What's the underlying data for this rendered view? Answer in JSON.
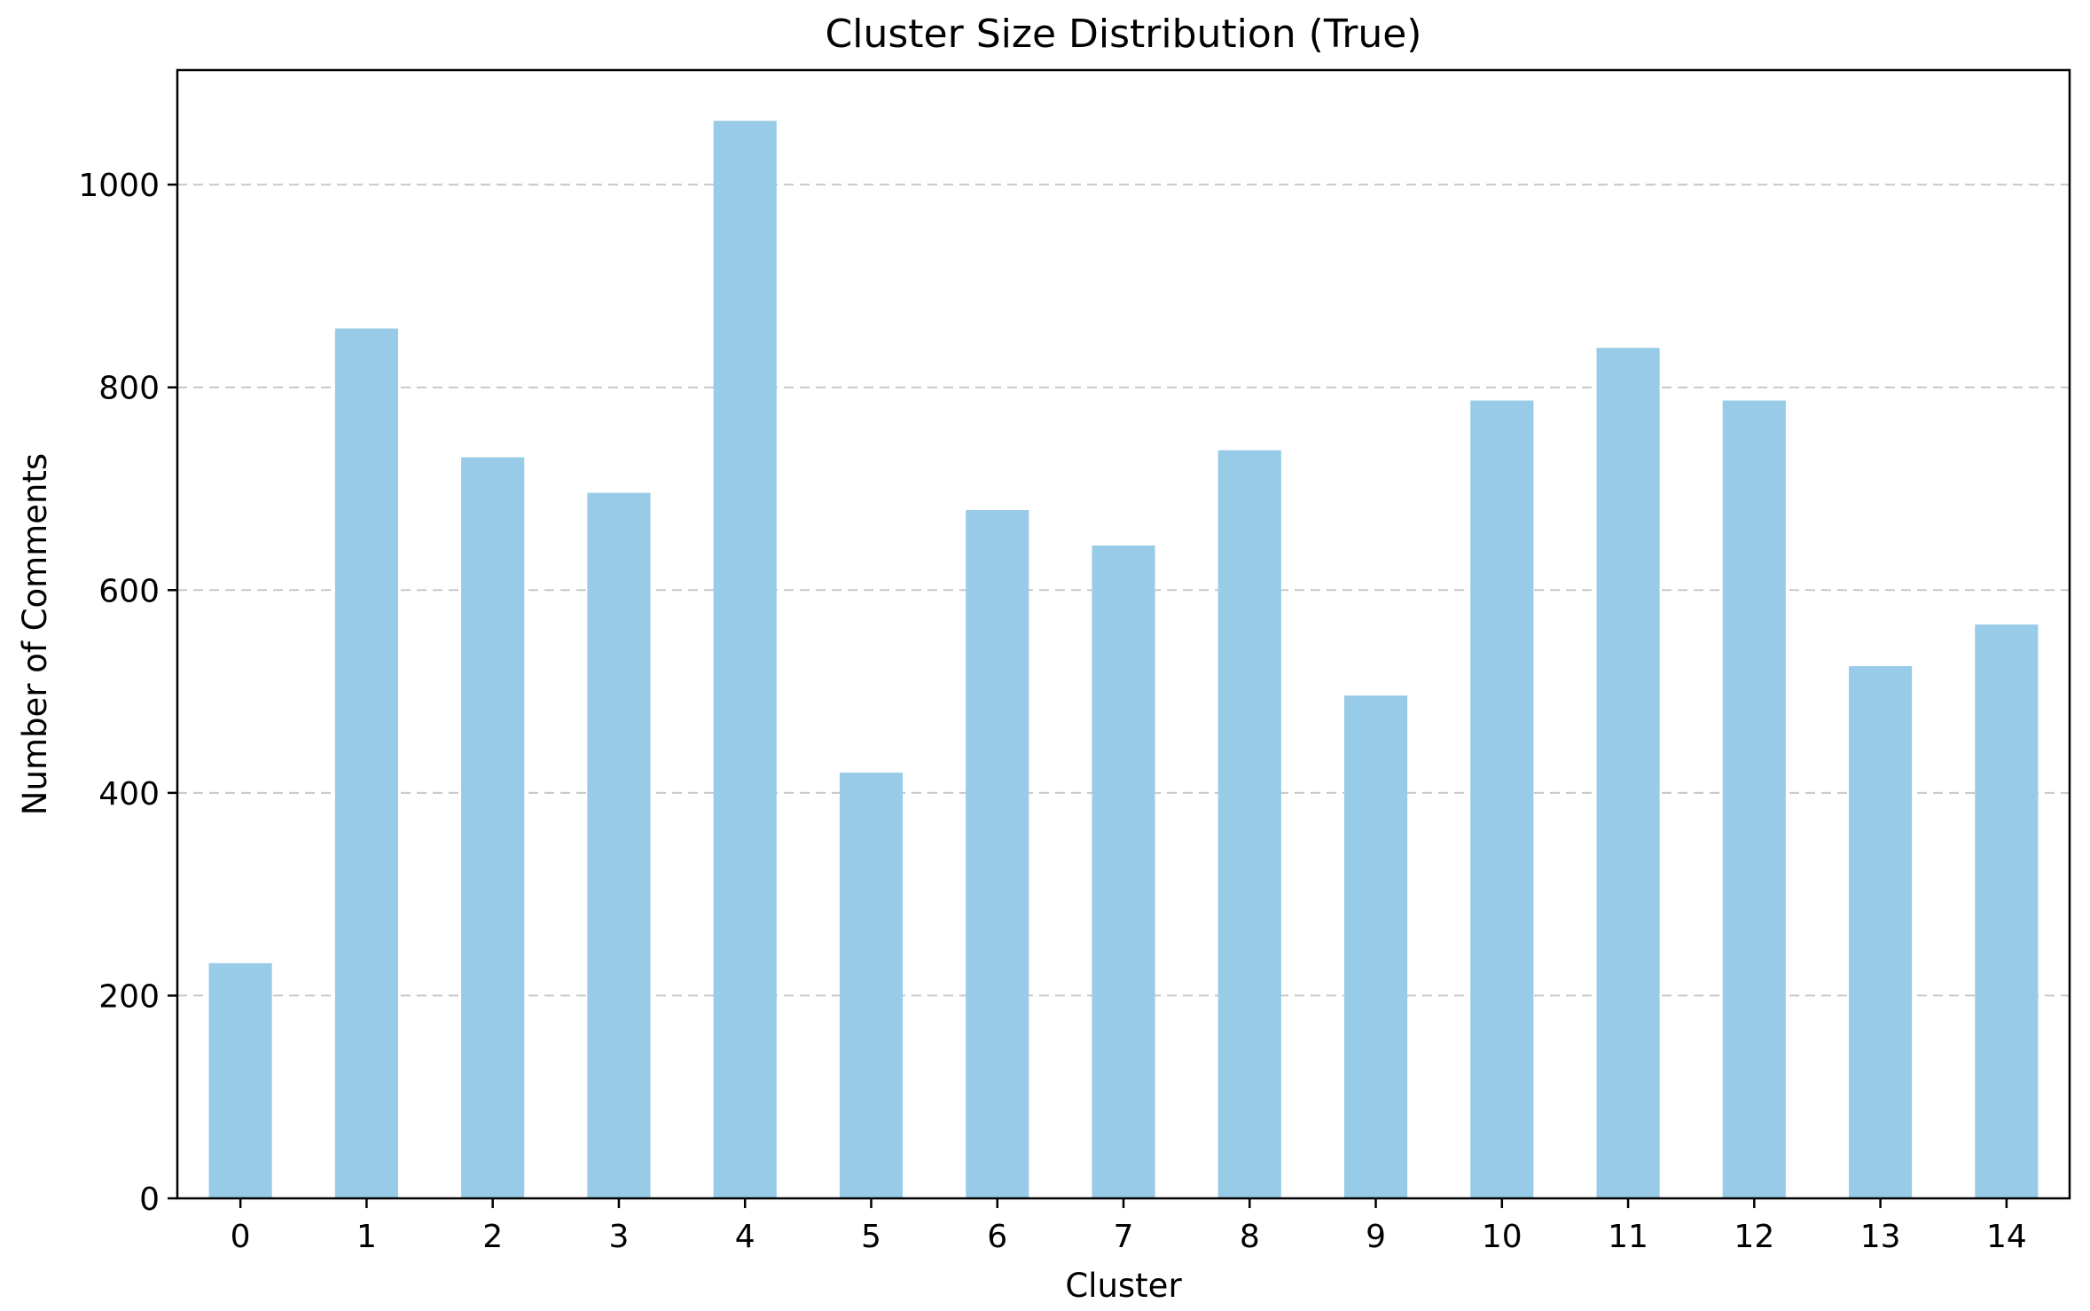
{
  "chart_data": {
    "type": "bar",
    "title": "Cluster Size Distribution (True)",
    "xlabel": "Cluster",
    "ylabel": "Number of Comments",
    "categories": [
      "0",
      "1",
      "2",
      "3",
      "4",
      "5",
      "6",
      "7",
      "8",
      "9",
      "10",
      "11",
      "12",
      "13",
      "14"
    ],
    "values": [
      232,
      858,
      731,
      696,
      1063,
      420,
      679,
      644,
      738,
      496,
      787,
      839,
      787,
      525,
      566
    ],
    "ylim": [
      0,
      1113
    ],
    "yticks": [
      0,
      200,
      400,
      600,
      800,
      1000
    ],
    "grid": {
      "axis": "y",
      "style": "dashed",
      "color": "#c8c8c8"
    },
    "bar_color": "#97cbe7",
    "legend": "none"
  }
}
